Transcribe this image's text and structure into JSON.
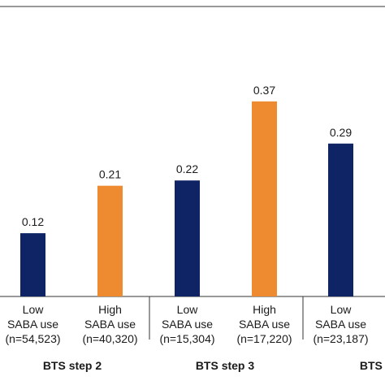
{
  "chart_data": {
    "type": "bar",
    "ylim": [
      0,
      0.55
    ],
    "grid": false,
    "colors": {
      "low": "#0f2465",
      "high": "#ee8a30",
      "axis": "#333333",
      "text": "#1a1a1a"
    },
    "bars": [
      {
        "value": 0.12,
        "label": "0.12",
        "category_lines": [
          "Low",
          "SABA use",
          "(n=54,523)"
        ],
        "use": "low"
      },
      {
        "value": 0.21,
        "label": "0.21",
        "category_lines": [
          "High",
          "SABA use",
          "(n=40,320)"
        ],
        "use": "high"
      },
      {
        "value": 0.22,
        "label": "0.22",
        "category_lines": [
          "Low",
          "SABA use",
          "(n=15,304)"
        ],
        "use": "low"
      },
      {
        "value": 0.37,
        "label": "0.37",
        "category_lines": [
          "High",
          "SABA use",
          "(n=17,220)"
        ],
        "use": "high"
      },
      {
        "value": 0.29,
        "label": "0.29",
        "category_lines": [
          "Low",
          "SABA use",
          "(n=23,187)"
        ],
        "use": "low"
      }
    ],
    "groups": [
      {
        "label": "BTS step 2"
      },
      {
        "label": "BTS step 3"
      },
      {
        "label": "BTS st"
      }
    ]
  }
}
